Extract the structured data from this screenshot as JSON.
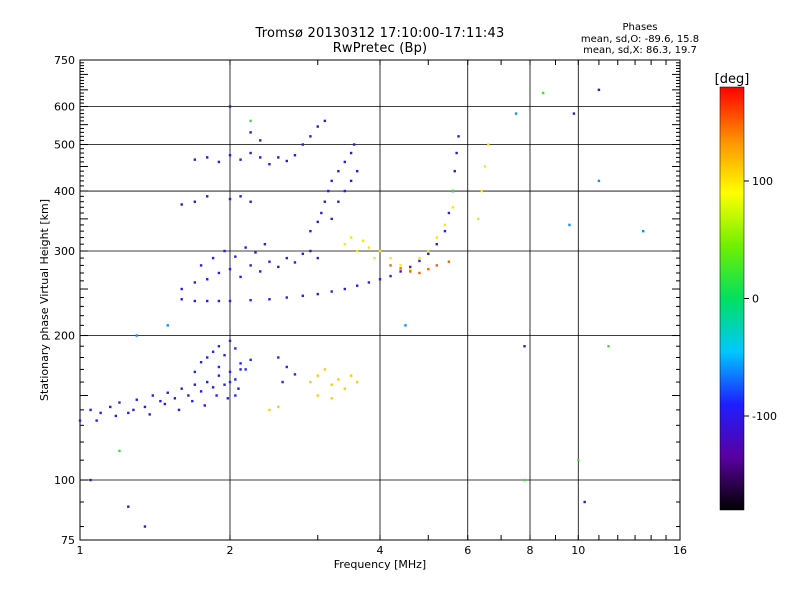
{
  "chart_data": {
    "type": "scatter",
    "title": "Tromsø 20130312 17:10:00-17:11:43",
    "subtitle": "RwPretec (Bp)",
    "xlabel": "Frequency [MHz]",
    "ylabel": "Stationary phase Virtual Height [km]",
    "x_scale": "log",
    "y_scale": "log",
    "xlim": [
      1,
      16
    ],
    "ylim": [
      75,
      750
    ],
    "x_ticks": [
      "1",
      "2",
      "4",
      "6",
      "8",
      "10",
      "16"
    ],
    "y_ticks": [
      "75",
      "100",
      "200",
      "300",
      "400",
      "500",
      "600",
      "750"
    ],
    "x_grid": [
      2,
      4,
      6,
      8,
      10
    ],
    "y_grid": [
      100,
      200,
      300,
      400,
      500,
      600
    ],
    "grid": true,
    "colorbar": {
      "label": "[deg]",
      "range": [
        -180,
        180
      ],
      "ticks": [
        "100",
        "0",
        "-100"
      ],
      "colors": [
        "#000000",
        "#5a00a0",
        "#1e1eff",
        "#00c8ff",
        "#00e060",
        "#70f000",
        "#ffff00",
        "#ff9000",
        "#ff0000"
      ]
    },
    "phases": {
      "title": "Phases",
      "line1": "mean, sd,O: -89.6, 15.8",
      "line2": "mean, sd,X:  86.3, 19.7"
    },
    "series": [
      {
        "phase": -95,
        "points": [
          [
            1.0,
            133
          ],
          [
            1.05,
            140
          ],
          [
            1.1,
            138
          ],
          [
            1.15,
            142
          ],
          [
            1.2,
            145
          ],
          [
            1.25,
            138
          ],
          [
            1.3,
            147
          ],
          [
            1.35,
            142
          ],
          [
            1.4,
            150
          ],
          [
            1.45,
            146
          ],
          [
            1.5,
            152
          ],
          [
            1.55,
            148
          ],
          [
            1.6,
            155
          ],
          [
            1.65,
            150
          ],
          [
            1.7,
            158
          ],
          [
            1.75,
            153
          ],
          [
            1.8,
            160
          ],
          [
            1.85,
            156
          ],
          [
            1.9,
            165
          ],
          [
            1.95,
            158
          ],
          [
            2.0,
            168
          ],
          [
            2.05,
            162
          ],
          [
            2.1,
            170
          ],
          [
            1.08,
            133
          ],
          [
            1.18,
            136
          ],
          [
            1.28,
            140
          ],
          [
            1.38,
            137
          ],
          [
            1.48,
            144
          ],
          [
            1.58,
            140
          ],
          [
            1.68,
            146
          ],
          [
            1.78,
            143
          ],
          [
            1.88,
            150
          ],
          [
            1.98,
            148
          ],
          [
            2.08,
            155
          ]
        ]
      },
      {
        "phase": -88,
        "points": [
          [
            1.8,
            180
          ],
          [
            1.85,
            185
          ],
          [
            1.9,
            190
          ],
          [
            1.95,
            182
          ],
          [
            2.0,
            195
          ],
          [
            2.05,
            188
          ],
          [
            2.1,
            175
          ],
          [
            2.15,
            170
          ],
          [
            2.2,
            178
          ],
          [
            1.9,
            172
          ],
          [
            2.0,
            160
          ],
          [
            2.05,
            150
          ],
          [
            1.7,
            168
          ],
          [
            1.75,
            176
          ],
          [
            2.5,
            180
          ],
          [
            2.6,
            172
          ],
          [
            2.7,
            166
          ],
          [
            2.55,
            160
          ]
        ]
      },
      {
        "phase": -92,
        "points": [
          [
            1.6,
            238
          ],
          [
            1.7,
            236
          ],
          [
            1.8,
            236
          ],
          [
            1.9,
            236
          ],
          [
            2.0,
            236
          ],
          [
            2.2,
            237
          ],
          [
            2.4,
            238
          ],
          [
            2.6,
            240
          ],
          [
            2.8,
            242
          ],
          [
            3.0,
            244
          ],
          [
            3.2,
            247
          ],
          [
            3.4,
            250
          ],
          [
            3.6,
            254
          ],
          [
            3.8,
            258
          ],
          [
            4.0,
            262
          ],
          [
            4.2,
            266
          ],
          [
            4.4,
            272
          ],
          [
            4.6,
            278
          ],
          [
            4.8,
            286
          ],
          [
            5.0,
            296
          ],
          [
            5.2,
            310
          ],
          [
            5.4,
            330
          ],
          [
            5.5,
            360
          ],
          [
            5.6,
            400
          ],
          [
            5.65,
            440
          ],
          [
            5.7,
            480
          ],
          [
            5.75,
            520
          ]
        ]
      },
      {
        "phase": -90,
        "points": [
          [
            1.6,
            250
          ],
          [
            1.7,
            258
          ],
          [
            1.8,
            262
          ],
          [
            1.9,
            270
          ],
          [
            2.0,
            275
          ],
          [
            2.1,
            265
          ],
          [
            2.2,
            280
          ],
          [
            2.3,
            272
          ],
          [
            2.4,
            285
          ],
          [
            2.5,
            278
          ],
          [
            2.6,
            290
          ],
          [
            2.7,
            284
          ],
          [
            2.8,
            296
          ],
          [
            2.9,
            300
          ],
          [
            3.0,
            290
          ],
          [
            1.75,
            280
          ],
          [
            1.85,
            290
          ],
          [
            1.95,
            300
          ],
          [
            2.05,
            292
          ],
          [
            2.15,
            305
          ],
          [
            2.25,
            298
          ],
          [
            2.35,
            310
          ]
        ]
      },
      {
        "phase": -98,
        "points": [
          [
            2.9,
            330
          ],
          [
            3.0,
            345
          ],
          [
            3.05,
            360
          ],
          [
            3.1,
            380
          ],
          [
            3.15,
            400
          ],
          [
            3.2,
            420
          ],
          [
            3.3,
            440
          ],
          [
            3.4,
            460
          ],
          [
            3.5,
            480
          ],
          [
            3.55,
            500
          ],
          [
            3.3,
            380
          ],
          [
            3.4,
            400
          ],
          [
            3.5,
            420
          ],
          [
            3.2,
            350
          ],
          [
            3.6,
            440
          ]
        ]
      },
      {
        "phase": -100,
        "points": [
          [
            1.7,
            465
          ],
          [
            1.8,
            470
          ],
          [
            1.9,
            460
          ],
          [
            2.0,
            475
          ],
          [
            2.1,
            465
          ],
          [
            2.2,
            480
          ],
          [
            2.3,
            470
          ],
          [
            2.0,
            385
          ],
          [
            2.1,
            390
          ],
          [
            2.2,
            380
          ],
          [
            1.6,
            375
          ],
          [
            1.7,
            380
          ],
          [
            1.8,
            390
          ],
          [
            2.4,
            455
          ],
          [
            2.5,
            470
          ],
          [
            2.6,
            462
          ],
          [
            2.7,
            475
          ],
          [
            2.8,
            500
          ],
          [
            2.9,
            520
          ],
          [
            3.0,
            545
          ],
          [
            3.1,
            560
          ],
          [
            2.2,
            530
          ],
          [
            2.3,
            510
          ]
        ]
      },
      {
        "phase": 100,
        "points": [
          [
            3.4,
            310
          ],
          [
            3.5,
            320
          ],
          [
            3.6,
            300
          ],
          [
            3.7,
            315
          ],
          [
            3.8,
            305
          ],
          [
            3.9,
            290
          ],
          [
            4.0,
            300
          ],
          [
            4.2,
            290
          ],
          [
            4.4,
            280
          ],
          [
            4.6,
            275
          ],
          [
            4.8,
            290
          ],
          [
            5.0,
            300
          ],
          [
            5.2,
            320
          ],
          [
            5.4,
            340
          ],
          [
            5.6,
            370
          ],
          [
            6.3,
            350
          ],
          [
            6.4,
            400
          ],
          [
            6.5,
            450
          ],
          [
            6.6,
            500
          ]
        ]
      },
      {
        "phase": 110,
        "points": [
          [
            2.9,
            160
          ],
          [
            3.0,
            165
          ],
          [
            3.1,
            170
          ],
          [
            3.2,
            158
          ],
          [
            3.3,
            162
          ],
          [
            3.4,
            155
          ],
          [
            3.5,
            165
          ],
          [
            3.6,
            160
          ],
          [
            3.0,
            150
          ],
          [
            3.2,
            148
          ],
          [
            2.4,
            140
          ],
          [
            2.5,
            142
          ]
        ]
      },
      {
        "phase": 150,
        "points": [
          [
            4.2,
            280
          ],
          [
            4.4,
            276
          ],
          [
            4.6,
            272
          ],
          [
            4.8,
            270
          ],
          [
            5.0,
            275
          ],
          [
            5.2,
            280
          ],
          [
            5.5,
            285
          ]
        ]
      },
      {
        "phase": 20,
        "points": [
          [
            7.8,
            100
          ],
          [
            10.0,
            110
          ],
          [
            2.2,
            560
          ],
          [
            8.5,
            640
          ],
          [
            5.6,
            400
          ],
          [
            1.2,
            115
          ],
          [
            11.5,
            190
          ]
        ]
      },
      {
        "phase": -60,
        "points": [
          [
            1.3,
            200
          ],
          [
            1.5,
            210
          ],
          [
            13.5,
            330
          ],
          [
            9.6,
            340
          ],
          [
            11.0,
            420
          ],
          [
            4.5,
            210
          ],
          [
            7.5,
            580
          ]
        ]
      },
      {
        "phase": -110,
        "points": [
          [
            1.35,
            80
          ],
          [
            1.25,
            88
          ],
          [
            1.05,
            100
          ],
          [
            10.3,
            90
          ],
          [
            11.0,
            650
          ],
          [
            9.8,
            580
          ],
          [
            2.0,
            600
          ],
          [
            7.8,
            190
          ]
        ]
      }
    ]
  }
}
